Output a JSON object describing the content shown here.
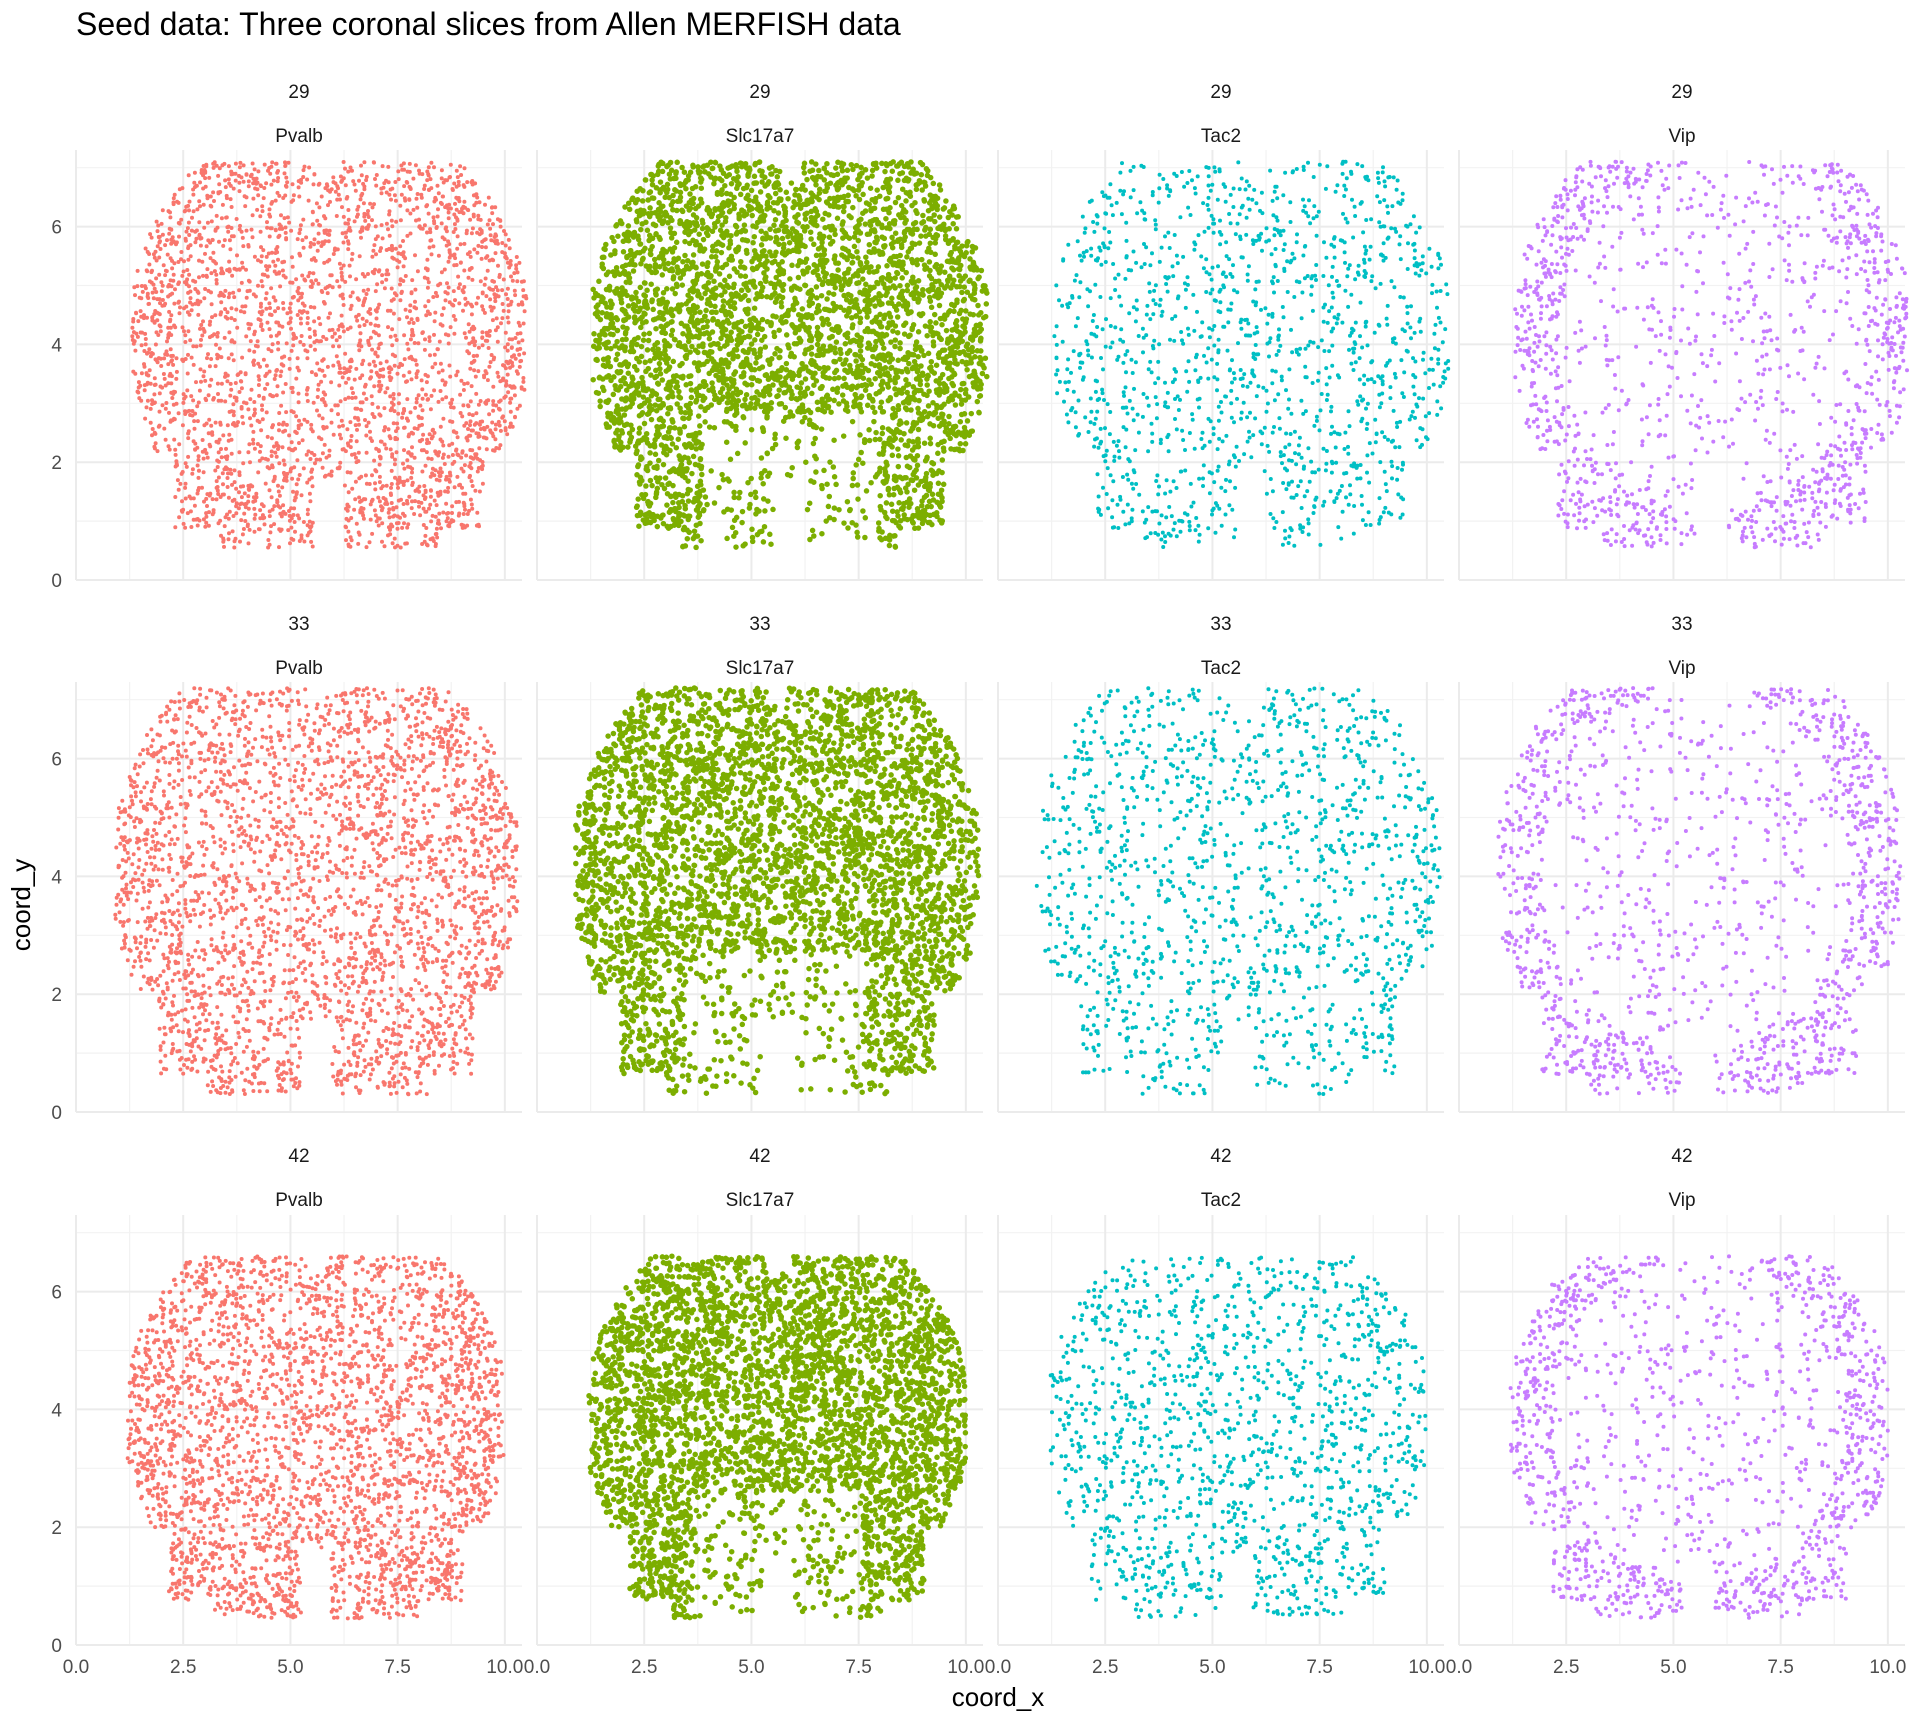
{
  "title": "Seed data: Three coronal slices from Allen MERFISH data",
  "chart_data": {
    "type": "scatter",
    "title": "Seed data: Three coronal slices from Allen MERFISH data",
    "xlabel": "coord_x",
    "ylabel": "coord_y",
    "xlim": [
      0,
      10.4
    ],
    "ylim": [
      0,
      7.3
    ],
    "x_ticks": [
      "0.0",
      "2.5",
      "5.0",
      "7.5",
      "10.0"
    ],
    "y_ticks": [
      "0",
      "2",
      "4",
      "6"
    ],
    "grid": true,
    "legend": "none",
    "facet_rows": [
      "29",
      "33",
      "42"
    ],
    "facet_cols": [
      "Pvalb",
      "Slc17a7",
      "Tac2",
      "Vip"
    ],
    "colors": {
      "Pvalb": "#F8766D",
      "Slc17a7": "#7CAE00",
      "Tac2": "#00BFC4",
      "Vip": "#C77CFF"
    },
    "density": {
      "Pvalb": 0.85,
      "Slc17a7": 1.0,
      "Tac2": 0.55,
      "Vip": 0.6
    },
    "slices": {
      "29": {
        "x_range": [
          1.3,
          10.5
        ],
        "y_range": [
          0.55,
          7.1
        ],
        "midline_x": 5.6
      },
      "33": {
        "x_range": [
          0.9,
          10.3
        ],
        "y_range": [
          0.3,
          7.2
        ],
        "midline_x": 5.3
      },
      "42": {
        "x_range": [
          1.2,
          10.0
        ],
        "y_range": [
          0.45,
          6.6
        ],
        "midline_x": 5.1
      }
    }
  }
}
